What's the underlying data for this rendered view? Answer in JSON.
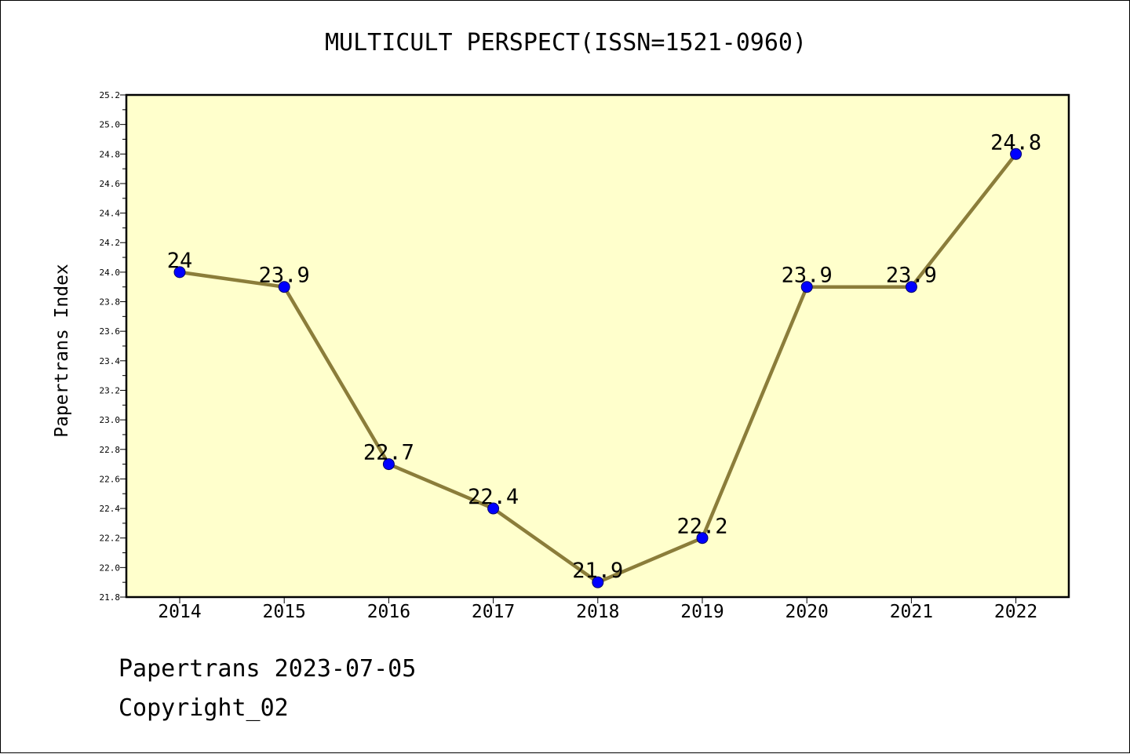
{
  "chart_data": {
    "type": "line",
    "title": "MULTICULT PERSPECT(ISSN=1521-0960)",
    "xlabel": "",
    "ylabel": "Papertrans Index",
    "categories": [
      "2014",
      "2015",
      "2016",
      "2017",
      "2018",
      "2019",
      "2020",
      "2021",
      "2022"
    ],
    "values": [
      24,
      23.9,
      22.7,
      22.4,
      21.9,
      22.2,
      23.9,
      23.9,
      24.8
    ],
    "data_labels": [
      "24",
      "23.9",
      "22.7",
      "22.4",
      "21.9",
      "22.2",
      "23.9",
      "23.9",
      "24.8"
    ],
    "ylim": [
      21.8,
      25.2
    ],
    "yticks": [
      "21.8",
      "22.0",
      "22.2",
      "22.4",
      "22.6",
      "22.8",
      "23.0",
      "23.2",
      "23.4",
      "23.6",
      "23.8",
      "24.0",
      "24.2",
      "24.4",
      "24.6",
      "24.8",
      "25.0",
      "25.2"
    ],
    "grid": false,
    "colors": {
      "plot_background": "#ffffcc",
      "line": "#8b7d3a",
      "marker": "#0000ff"
    }
  },
  "footer": {
    "line1": "Papertrans 2023-07-05",
    "line2": "Copyright_02"
  }
}
